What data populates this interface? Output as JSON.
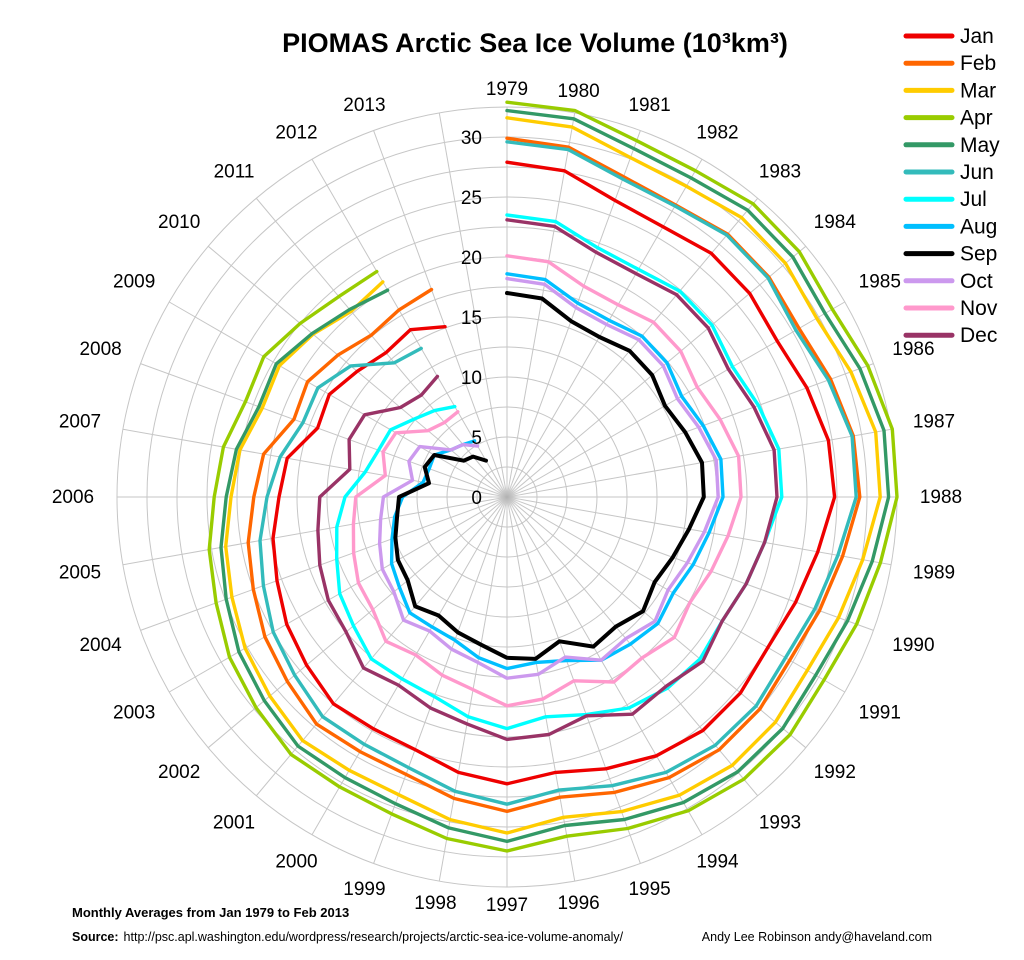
{
  "title": "PIOMAS Arctic Sea Ice Volume (10³km³)",
  "legend": {
    "items": [
      {
        "label": "Jan",
        "color": "#ee0000"
      },
      {
        "label": "Feb",
        "color": "#ff6600"
      },
      {
        "label": "Mar",
        "color": "#ffcc00"
      },
      {
        "label": "Apr",
        "color": "#99cc00"
      },
      {
        "label": "May",
        "color": "#339966"
      },
      {
        "label": "Jun",
        "color": "#33bbbb"
      },
      {
        "label": "Jul",
        "color": "#00ffff"
      },
      {
        "label": "Aug",
        "color": "#00bfff"
      },
      {
        "label": "Sep",
        "color": "#000000"
      },
      {
        "label": "Oct",
        "color": "#cc99ee"
      },
      {
        "label": "Nov",
        "color": "#ff99cc"
      },
      {
        "label": "Dec",
        "color": "#993366"
      }
    ]
  },
  "footer": {
    "note": "Monthly Averages from Jan 1979 to Feb 2013",
    "source_label": "Source:",
    "source_url": "http://psc.apl.washington.edu/wordpress/research/projects/arctic-sea-ice-volume-anomaly/",
    "credit": "Andy Lee Robinson andy@haveland.com"
  },
  "chart_data": {
    "type": "line",
    "polar": true,
    "title": "PIOMAS Arctic Sea Ice Volume (10³km³)",
    "units": "10³km³",
    "x": [
      1979,
      1980,
      1981,
      1982,
      1983,
      1984,
      1985,
      1986,
      1987,
      1988,
      1989,
      1990,
      1991,
      1992,
      1993,
      1994,
      1995,
      1996,
      1997,
      1998,
      1999,
      2000,
      2001,
      2002,
      2003,
      2004,
      2005,
      2006,
      2007,
      2008,
      2009,
      2010,
      2011,
      2012,
      2013
    ],
    "angle_step_deg": 10,
    "start_angle": "top, years clockwise",
    "rlim": [
      0,
      32.5
    ],
    "rticks": [
      0,
      5,
      10,
      15,
      20,
      25,
      30
    ],
    "grid_ring_step": 2.5,
    "grid": true,
    "legend_position": "top-right",
    "series": [
      {
        "name": "Jan",
        "color": "#ee0000",
        "values": [
          27.9,
          27.6,
          26.3,
          26.0,
          26.5,
          26.4,
          26.0,
          26.6,
          27.2,
          27.3,
          26.3,
          25.6,
          25.1,
          25.4,
          25.4,
          24.9,
          24.1,
          23.3,
          23.9,
          23.3,
          22.4,
          22.3,
          22.5,
          21.8,
          21.2,
          20.4,
          19.8,
          19.0,
          18.6,
          16.8,
          17.1,
          16.3,
          15.7,
          16.1,
          15.1
        ]
      },
      {
        "name": "Feb",
        "color": "#ff6600",
        "values": [
          29.9,
          29.6,
          28.4,
          28.1,
          28.6,
          28.5,
          28.1,
          28.7,
          29.3,
          29.4,
          28.4,
          27.7,
          27.2,
          27.5,
          27.5,
          27.0,
          26.2,
          25.4,
          26.2,
          25.5,
          24.6,
          24.5,
          24.7,
          23.9,
          23.3,
          22.5,
          21.9,
          21.1,
          20.6,
          18.9,
          19.2,
          18.4,
          17.6,
          18.0,
          18.4
        ]
      },
      {
        "name": "Mar",
        "color": "#ffcc00",
        "values": [
          31.6,
          31.3,
          30.1,
          29.9,
          30.4,
          30.3,
          29.8,
          30.5,
          31.2,
          31.1,
          30.1,
          29.4,
          28.9,
          29.2,
          29.2,
          28.7,
          27.9,
          27.1,
          28.0,
          27.3,
          26.4,
          26.3,
          26.5,
          25.8,
          25.2,
          24.4,
          23.8,
          23.0,
          22.6,
          21.7,
          21.9,
          21.1,
          20.2,
          20.7
        ]
      },
      {
        "name": "Apr",
        "color": "#99cc00",
        "values": [
          32.9,
          32.7,
          31.6,
          31.4,
          31.9,
          31.8,
          31.3,
          32.0,
          32.6,
          32.5,
          31.6,
          31.0,
          30.5,
          30.8,
          30.7,
          30.2,
          29.4,
          28.7,
          29.5,
          28.9,
          28.1,
          27.9,
          28.0,
          27.3,
          26.7,
          25.8,
          25.2,
          24.4,
          24.0,
          23.2,
          23.4,
          22.5,
          21.8,
          21.7
        ]
      },
      {
        "name": "May",
        "color": "#339966",
        "values": [
          32.2,
          32.0,
          30.9,
          30.7,
          31.2,
          31.1,
          30.6,
          31.3,
          31.9,
          31.8,
          30.9,
          30.2,
          29.7,
          30.0,
          29.9,
          29.4,
          28.6,
          27.8,
          28.7,
          28.0,
          27.2,
          27.0,
          27.1,
          26.4,
          25.8,
          24.9,
          24.2,
          23.4,
          22.9,
          22.0,
          22.2,
          21.2,
          20.4,
          19.9
        ]
      },
      {
        "name": "Jun",
        "color": "#33bbbb",
        "values": [
          29.6,
          29.4,
          28.2,
          28.0,
          28.5,
          28.4,
          27.8,
          28.5,
          29.2,
          29.1,
          28.0,
          27.3,
          26.8,
          27.1,
          27.0,
          26.5,
          25.6,
          24.8,
          25.6,
          24.9,
          24.0,
          23.8,
          23.9,
          23.1,
          22.5,
          21.6,
          20.9,
          20.0,
          19.2,
          18.1,
          18.2,
          17.0,
          14.6,
          14.3
        ]
      },
      {
        "name": "Jul",
        "color": "#00ffff",
        "values": [
          23.5,
          23.3,
          22.1,
          21.9,
          22.4,
          22.3,
          21.7,
          22.3,
          23.0,
          22.9,
          21.8,
          21.2,
          20.7,
          21.0,
          20.8,
          20.3,
          19.3,
          18.6,
          19.3,
          18.6,
          17.7,
          17.5,
          17.6,
          16.7,
          16.1,
          15.1,
          14.4,
          13.5,
          12.0,
          11.4,
          11.2,
          10.1,
          9.4,
          8.7
        ]
      },
      {
        "name": "Aug",
        "color": "#00bfff",
        "values": [
          18.6,
          18.4,
          17.2,
          17.0,
          17.5,
          17.4,
          16.8,
          17.4,
          18.1,
          18.0,
          17.1,
          16.5,
          16.0,
          16.4,
          16.0,
          15.7,
          14.5,
          14.0,
          14.3,
          13.6,
          12.7,
          12.5,
          12.6,
          11.7,
          11.1,
          10.2,
          9.5,
          8.7,
          7.1,
          6.9,
          7.0,
          6.1,
          5.7,
          5.4
        ]
      },
      {
        "name": "Sep",
        "color": "#000000",
        "values": [
          17.0,
          16.8,
          15.6,
          15.4,
          15.9,
          15.8,
          15.2,
          15.8,
          16.5,
          16.4,
          15.4,
          14.7,
          14.2,
          14.8,
          14.1,
          14.4,
          12.8,
          13.7,
          13.4,
          12.5,
          12.0,
          11.4,
          11.9,
          10.8,
          10.5,
          9.9,
          9.3,
          9.0,
          6.6,
          7.3,
          7.0,
          4.7,
          4.4,
          3.5
        ]
      },
      {
        "name": "Oct",
        "color": "#cc99ee",
        "values": [
          18.2,
          18.0,
          16.8,
          16.6,
          17.1,
          17.0,
          16.4,
          17.0,
          17.7,
          17.6,
          16.7,
          16.0,
          15.5,
          16.1,
          15.4,
          15.7,
          14.2,
          15.0,
          15.1,
          14.0,
          13.5,
          12.9,
          13.4,
          12.3,
          12.0,
          11.3,
          10.7,
          10.3,
          8.0,
          8.7,
          8.4,
          6.1,
          5.7,
          4.9
        ]
      },
      {
        "name": "Nov",
        "color": "#ff99cc",
        "values": [
          20.1,
          19.9,
          18.7,
          18.5,
          19.0,
          18.9,
          18.3,
          18.9,
          19.6,
          19.5,
          18.7,
          18.1,
          17.6,
          18.2,
          17.5,
          17.8,
          16.3,
          17.1,
          17.4,
          16.3,
          15.8,
          15.2,
          15.7,
          14.6,
          14.3,
          13.6,
          13.0,
          12.6,
          10.3,
          11.0,
          10.7,
          8.6,
          8.1,
          8.2
        ]
      },
      {
        "name": "Dec",
        "color": "#993366",
        "values": [
          23.1,
          22.9,
          21.7,
          21.5,
          22.0,
          21.9,
          21.3,
          21.9,
          22.6,
          22.5,
          21.8,
          21.2,
          20.7,
          21.3,
          20.6,
          20.9,
          19.4,
          20.1,
          20.2,
          19.2,
          18.7,
          18.1,
          18.6,
          17.5,
          17.2,
          16.6,
          16.0,
          15.6,
          13.3,
          14.0,
          13.7,
          11.6,
          11.1,
          11.6
        ]
      }
    ]
  }
}
